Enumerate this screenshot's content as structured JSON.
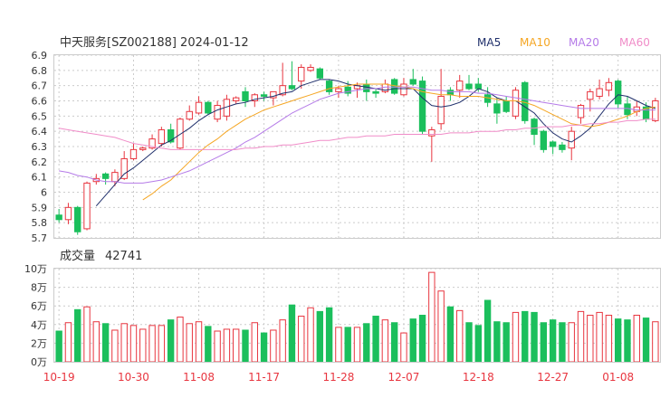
{
  "header": {
    "title": "中天服务[SZ002188] 2024-01-12"
  },
  "legend": [
    {
      "name": "MA5",
      "color": "#1f2f6b"
    },
    {
      "name": "MA10",
      "color": "#f5a623"
    },
    {
      "name": "MA20",
      "color": "#b57be8"
    },
    {
      "name": "MA60",
      "color": "#f08cc8"
    }
  ],
  "volume_header": {
    "label": "成交量",
    "value": "42741"
  },
  "colors": {
    "up": "#e8353f",
    "down": "#1bbf5c",
    "grid": "#cccccc"
  },
  "chart_data": [
    {
      "type": "candlestick",
      "ylim": [
        5.7,
        6.9
      ],
      "yticks": [
        "6.9",
        "6.8",
        "6.7",
        "6.6",
        "6.5",
        "6.4",
        "6.3",
        "6.2",
        "6.1",
        "6",
        "5.9",
        "5.8",
        "5.7"
      ],
      "xticks": [
        "10-19",
        "10-30",
        "11-08",
        "11-17",
        "11-28",
        "12-07",
        "12-18",
        "12-27",
        "01-08"
      ],
      "candles": [
        [
          5.85,
          5.82,
          5.89,
          5.8
        ],
        [
          5.82,
          5.9,
          5.93,
          5.79
        ],
        [
          5.9,
          5.74,
          5.91,
          5.72
        ],
        [
          5.76,
          6.06,
          6.07,
          5.75
        ],
        [
          6.07,
          6.09,
          6.12,
          6.05
        ],
        [
          6.12,
          6.09,
          6.13,
          6.05
        ],
        [
          6.07,
          6.13,
          6.15,
          6.04
        ],
        [
          6.09,
          6.22,
          6.27,
          6.08
        ],
        [
          6.22,
          6.28,
          6.32,
          6.21
        ],
        [
          6.28,
          6.29,
          6.3,
          6.27
        ],
        [
          6.29,
          6.35,
          6.38,
          6.28
        ],
        [
          6.32,
          6.41,
          6.43,
          6.3
        ],
        [
          6.41,
          6.33,
          6.45,
          6.32
        ],
        [
          6.29,
          6.48,
          6.49,
          6.28
        ],
        [
          6.48,
          6.53,
          6.57,
          6.47
        ],
        [
          6.52,
          6.59,
          6.63,
          6.51
        ],
        [
          6.59,
          6.52,
          6.6,
          6.51
        ],
        [
          6.48,
          6.57,
          6.6,
          6.46
        ],
        [
          6.5,
          6.61,
          6.64,
          6.47
        ],
        [
          6.6,
          6.62,
          6.63,
          6.58
        ],
        [
          6.66,
          6.6,
          6.69,
          6.56
        ],
        [
          6.6,
          6.64,
          6.65,
          6.56
        ],
        [
          6.64,
          6.63,
          6.66,
          6.6
        ],
        [
          6.62,
          6.66,
          6.66,
          6.57
        ],
        [
          6.64,
          6.7,
          6.85,
          6.63
        ],
        [
          6.7,
          6.68,
          6.86,
          6.67
        ],
        [
          6.73,
          6.82,
          6.84,
          6.68
        ],
        [
          6.8,
          6.82,
          6.84,
          6.79
        ],
        [
          6.81,
          6.75,
          6.82,
          6.74
        ],
        [
          6.73,
          6.66,
          6.74,
          6.64
        ],
        [
          6.66,
          6.68,
          6.7,
          6.62
        ],
        [
          6.69,
          6.65,
          6.73,
          6.63
        ],
        [
          6.68,
          6.7,
          6.72,
          6.62
        ],
        [
          6.71,
          6.66,
          6.74,
          6.6
        ],
        [
          6.66,
          6.65,
          6.68,
          6.62
        ],
        [
          6.66,
          6.71,
          6.74,
          6.65
        ],
        [
          6.74,
          6.65,
          6.75,
          6.64
        ],
        [
          6.64,
          6.71,
          6.75,
          6.63
        ],
        [
          6.74,
          6.71,
          6.81,
          6.7
        ],
        [
          6.73,
          6.4,
          6.76,
          6.38
        ],
        [
          6.37,
          6.41,
          6.43,
          6.2
        ],
        [
          6.45,
          6.63,
          6.81,
          6.41
        ],
        [
          6.67,
          6.64,
          6.69,
          6.6
        ],
        [
          6.67,
          6.73,
          6.77,
          6.62
        ],
        [
          6.71,
          6.68,
          6.77,
          6.67
        ],
        [
          6.71,
          6.68,
          6.75,
          6.66
        ],
        [
          6.64,
          6.59,
          6.69,
          6.56
        ],
        [
          6.58,
          6.52,
          6.62,
          6.45
        ],
        [
          6.6,
          6.53,
          6.63,
          6.52
        ],
        [
          6.5,
          6.67,
          6.69,
          6.48
        ],
        [
          6.72,
          6.47,
          6.73,
          6.45
        ],
        [
          6.48,
          6.38,
          6.49,
          6.31
        ],
        [
          6.4,
          6.28,
          6.41,
          6.26
        ],
        [
          6.33,
          6.3,
          6.34,
          6.25
        ],
        [
          6.31,
          6.28,
          6.33,
          6.26
        ],
        [
          6.29,
          6.4,
          6.43,
          6.21
        ],
        [
          6.49,
          6.57,
          6.58,
          6.45
        ],
        [
          6.61,
          6.66,
          6.68,
          6.53
        ],
        [
          6.63,
          6.68,
          6.74,
          6.61
        ],
        [
          6.67,
          6.72,
          6.75,
          6.63
        ],
        [
          6.73,
          6.58,
          6.74,
          6.55
        ],
        [
          6.58,
          6.51,
          6.63,
          6.48
        ],
        [
          6.53,
          6.56,
          6.6,
          6.5
        ],
        [
          6.56,
          6.48,
          6.59,
          6.46
        ],
        [
          6.47,
          6.6,
          6.62,
          6.46
        ]
      ],
      "ma": {
        "MA5": [
          null,
          null,
          null,
          null,
          5.91,
          5.98,
          6.05,
          6.12,
          6.16,
          6.21,
          6.26,
          6.31,
          6.34,
          6.38,
          6.42,
          6.47,
          6.51,
          6.54,
          6.56,
          6.58,
          6.59,
          6.61,
          6.62,
          6.63,
          6.65,
          6.66,
          6.7,
          6.72,
          6.74,
          6.74,
          6.73,
          6.71,
          6.7,
          6.69,
          6.68,
          6.67,
          6.68,
          6.68,
          6.68,
          6.62,
          6.57,
          6.56,
          6.57,
          6.59,
          6.63,
          6.68,
          6.66,
          6.62,
          6.6,
          6.6,
          6.56,
          6.52,
          6.45,
          6.39,
          6.35,
          6.33,
          6.37,
          6.42,
          6.5,
          6.58,
          6.64,
          6.63,
          6.6,
          6.57,
          6.55
        ],
        "MA10": [
          null,
          null,
          null,
          null,
          null,
          null,
          null,
          null,
          null,
          5.95,
          5.99,
          6.04,
          6.08,
          6.14,
          6.2,
          6.26,
          6.31,
          6.35,
          6.4,
          6.44,
          6.48,
          6.51,
          6.54,
          6.56,
          6.58,
          6.6,
          6.62,
          6.64,
          6.66,
          6.68,
          6.69,
          6.7,
          6.71,
          6.71,
          6.71,
          6.71,
          6.7,
          6.69,
          6.68,
          6.66,
          6.65,
          6.64,
          6.64,
          6.63,
          6.63,
          6.63,
          6.62,
          6.61,
          6.6,
          6.6,
          6.59,
          6.57,
          6.54,
          6.51,
          6.48,
          6.45,
          6.44,
          6.43,
          6.44,
          6.46,
          6.48,
          6.5,
          6.53,
          6.55,
          6.56
        ],
        "MA20": [
          6.14,
          6.13,
          6.11,
          6.1,
          6.08,
          6.07,
          6.07,
          6.06,
          6.06,
          6.06,
          6.07,
          6.08,
          6.1,
          6.12,
          6.14,
          6.17,
          6.2,
          6.23,
          6.26,
          6.29,
          6.33,
          6.36,
          6.4,
          6.44,
          6.48,
          6.52,
          6.55,
          6.58,
          6.61,
          6.63,
          6.65,
          6.66,
          6.67,
          6.68,
          6.68,
          6.69,
          6.69,
          6.69,
          6.69,
          6.68,
          6.67,
          6.67,
          6.66,
          6.66,
          6.66,
          6.65,
          6.65,
          6.64,
          6.63,
          6.62,
          6.61,
          6.6,
          6.59,
          6.58,
          6.57,
          6.56,
          6.55,
          6.55,
          6.55,
          6.55,
          6.55,
          6.55,
          6.54,
          6.54,
          6.54
        ],
        "MA60": [
          6.42,
          6.41,
          6.4,
          6.39,
          6.38,
          6.37,
          6.36,
          6.34,
          6.32,
          6.31,
          6.3,
          6.29,
          6.28,
          6.28,
          6.28,
          6.28,
          6.28,
          6.28,
          6.28,
          6.28,
          6.29,
          6.29,
          6.3,
          6.3,
          6.31,
          6.31,
          6.32,
          6.33,
          6.34,
          6.34,
          6.35,
          6.36,
          6.36,
          6.37,
          6.37,
          6.37,
          6.38,
          6.38,
          6.38,
          6.38,
          6.38,
          6.38,
          6.39,
          6.39,
          6.39,
          6.4,
          6.4,
          6.4,
          6.41,
          6.41,
          6.42,
          6.42,
          6.43,
          6.43,
          6.43,
          6.44,
          6.44,
          6.45,
          6.45,
          6.46,
          6.46,
          6.47,
          6.47,
          6.48,
          6.48
        ]
      }
    },
    {
      "type": "bar",
      "title": "成交量",
      "ylim": [
        0,
        100000
      ],
      "yticks": [
        "10万",
        "8万",
        "6万",
        "4万",
        "2万",
        "0万"
      ],
      "volumes": [
        33000,
        42000,
        56000,
        59000,
        43000,
        41000,
        34000,
        41000,
        39000,
        35000,
        39000,
        39000,
        45000,
        48000,
        41000,
        43000,
        38000,
        33000,
        35000,
        35000,
        34000,
        42000,
        31000,
        34000,
        45000,
        61000,
        49000,
        58000,
        54000,
        58000,
        37000,
        37000,
        37000,
        41000,
        49000,
        45000,
        42000,
        31000,
        46000,
        50000,
        96000,
        76000,
        59000,
        55000,
        42000,
        39000,
        66000,
        43000,
        42000,
        53000,
        54000,
        53000,
        42000,
        45000,
        42000,
        42000,
        54000,
        50000,
        53000,
        50000,
        46000,
        45000,
        50000,
        47000,
        43000
      ]
    }
  ]
}
